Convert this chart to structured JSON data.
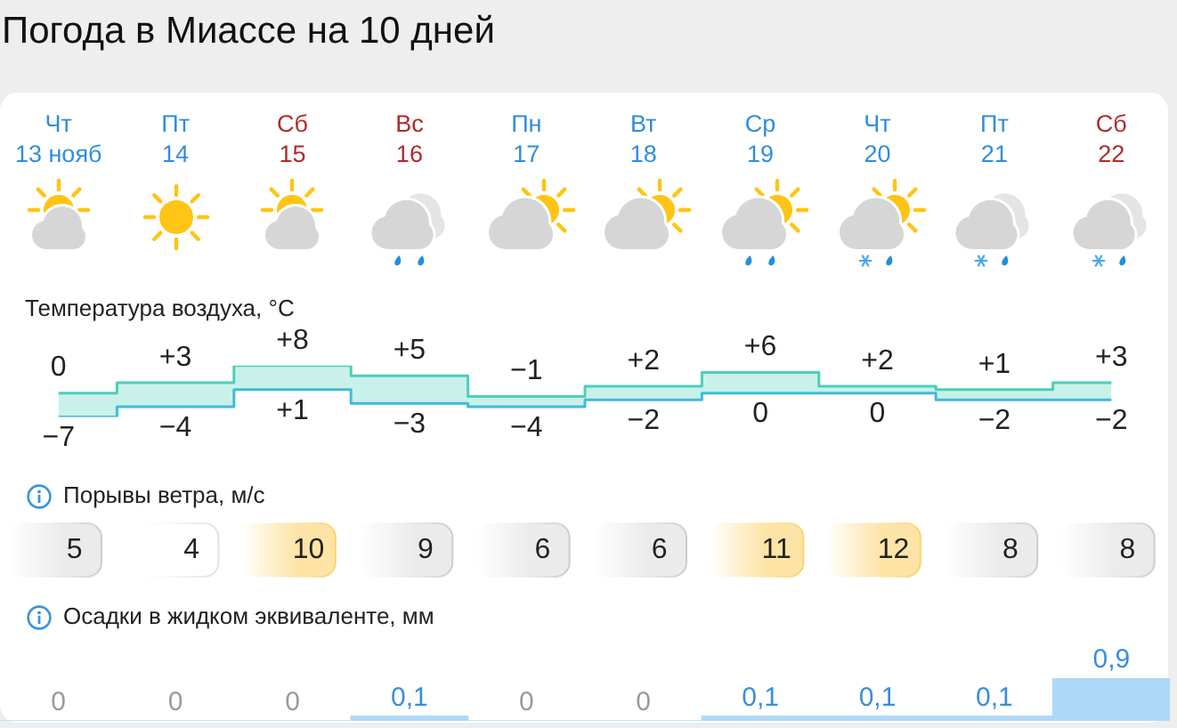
{
  "chart_data": [
    {
      "type": "step",
      "title": "Погода в Миассе на 10 дней",
      "subtitle": "Температура воздуха, °C",
      "categories": [
        "Чт\n13 нояб",
        "Пт\n14",
        "Сб\n15",
        "Вс\n16",
        "Пн\n17",
        "Вт\n18",
        "Ср\n19",
        "Чт\n20",
        "Пт\n21",
        "Сб\n22"
      ],
      "series": [
        {
          "color": "#4ccfb8",
          "values": [
            0,
            3,
            8,
            5,
            -1,
            2,
            6,
            2,
            1,
            3
          ],
          "value_labels": [
            "0",
            "+3",
            "+8",
            "+5",
            "−1",
            "+2",
            "+6",
            "+2",
            "+1",
            "+3"
          ],
          "lower": [
            -7,
            -4,
            1,
            -3,
            -4,
            -2,
            0,
            0,
            -2,
            -2
          ],
          "upper": [
            0,
            3,
            8,
            5,
            -1,
            2,
            6,
            2,
            1,
            3
          ]
        },
        {
          "color": "#3db8e0",
          "values": [
            -7,
            -4,
            1,
            -3,
            -4,
            -2,
            0,
            0,
            -2,
            -2
          ],
          "value_labels": [
            "−7",
            "−4",
            "+1",
            "−3",
            "−4",
            "−2",
            "0",
            "0",
            "−2",
            "−2"
          ]
        }
      ],
      "tick_labels": "x"
    },
    {
      "type": "other",
      "title": "Порывы ветра, м/с",
      "categories": [
        null,
        null,
        null,
        null,
        null,
        null,
        null,
        null,
        null,
        null
      ],
      "values": [
        5,
        4,
        10,
        9,
        6,
        6,
        11,
        12,
        8,
        8
      ],
      "colors": [
        "#ebebeb",
        "#ffffff",
        "#fde4a6",
        "#ebebeb",
        "#ebebeb",
        "#ebebeb",
        "#fde4a6",
        "#fde4a6",
        "#ebebeb",
        "#ebebeb"
      ],
      "data_labels": true
    },
    {
      "type": "bar",
      "title": "Осадки в жидком эквиваленте, мм",
      "categories": [
        null,
        null,
        null,
        null,
        null,
        null,
        null,
        null,
        null,
        null
      ],
      "values": [
        0,
        0,
        0,
        0.1,
        0,
        0,
        0.1,
        0.1,
        0.1,
        0.9
      ],
      "value_labels": [
        "0",
        "0",
        "0",
        "0,1",
        "0",
        "0",
        "0,1",
        "0,1",
        "0,1",
        "0,9"
      ],
      "color": "#aed8f7",
      "tick_labels": false
    }
  ]
}
